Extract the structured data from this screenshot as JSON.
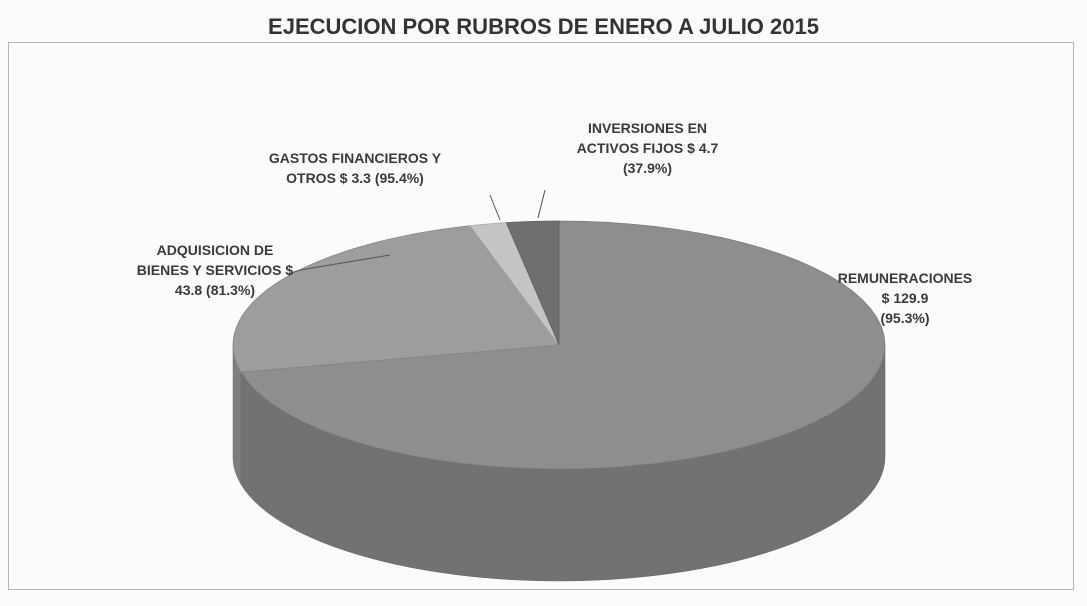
{
  "chart_data": {
    "type": "pie3d",
    "title": "EJECUCION POR RUBROS DE ENERO A JULIO 2015",
    "categories": [
      "REMUNERACIONES",
      "ADQUISICION DE BIENES Y SERVICIOS",
      "GASTOS FINANCIEROS Y OTROS",
      "INVERSIONES EN ACTIVOS FIJOS"
    ],
    "values": [
      129.9,
      43.8,
      3.3,
      4.7
    ],
    "value_labels": [
      "$ 129.9 (95.3%)",
      "$ 43.8 (81.3%)",
      "$ 3.3 (95.4%)",
      "$ 4.7 (37.9%)"
    ],
    "colors": [
      "#8e8e8e",
      "#9d9d9d",
      "#c4c4c4",
      "#6f6f6f"
    ]
  }
}
